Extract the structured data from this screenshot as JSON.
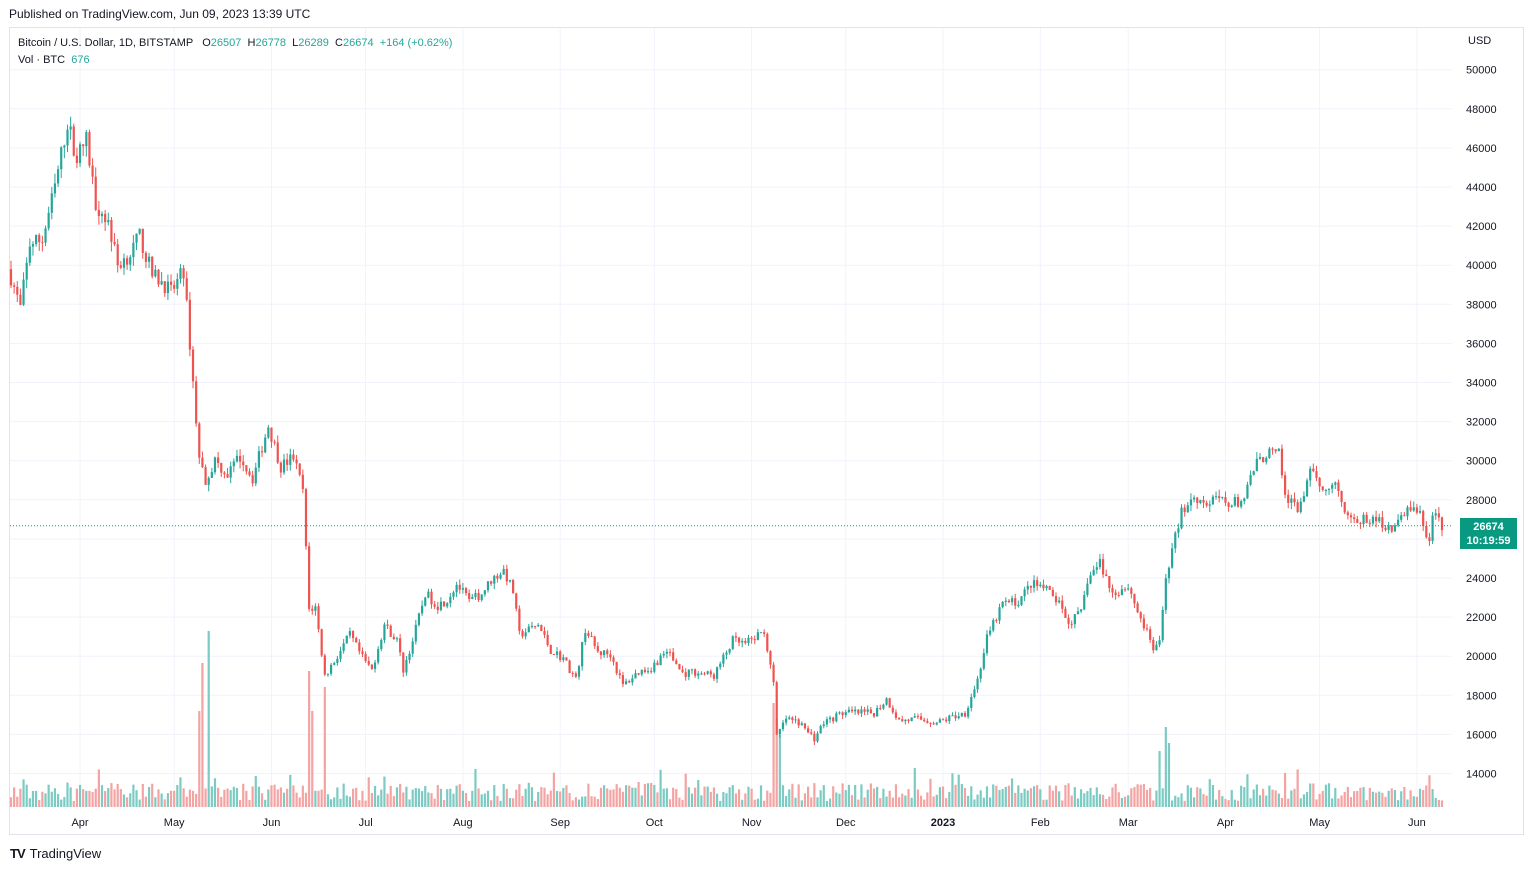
{
  "header": {
    "published": "Published on TradingView.com, Jun 09, 2023 13:39 UTC"
  },
  "legend": {
    "symbol": "Bitcoin / U.S. Dollar, 1D, BITSTAMP",
    "open_key": "O",
    "open": "26507",
    "high_key": "H",
    "high": "26778",
    "low_key": "L",
    "low": "26289",
    "close_key": "C",
    "close": "26674",
    "change": "+164 (+0.62%)",
    "volume_label": "Vol · BTC",
    "volume": "676"
  },
  "axis": {
    "currency": "USD"
  },
  "last_price": {
    "price": "26674",
    "countdown": "10:19:59"
  },
  "footer": {
    "logo_mark": "TV",
    "brand": "TradingView"
  },
  "colors": {
    "up": "#26a69a",
    "down": "#ef5350",
    "vol_up": "#7ccbc3",
    "vol_down": "#f4a3a3",
    "grid": "#f0f3fa",
    "last_line": "#089981"
  },
  "chart_data": {
    "type": "candlestick",
    "ylim": [
      12500,
      50800
    ],
    "y_ticks": [
      14000,
      16000,
      18000,
      20000,
      22000,
      24000,
      26000,
      28000,
      30000,
      32000,
      34000,
      36000,
      38000,
      40000,
      42000,
      44000,
      46000,
      48000,
      50000
    ],
    "x_ticks": [
      {
        "label": "Apr",
        "date": "2022-04-01"
      },
      {
        "label": "May",
        "date": "2022-05-01"
      },
      {
        "label": "Jun",
        "date": "2022-06-01"
      },
      {
        "label": "Jul",
        "date": "2022-07-01"
      },
      {
        "label": "Aug",
        "date": "2022-08-01"
      },
      {
        "label": "Sep",
        "date": "2022-09-01"
      },
      {
        "label": "Oct",
        "date": "2022-10-01"
      },
      {
        "label": "Nov",
        "date": "2022-11-01"
      },
      {
        "label": "Dec",
        "date": "2022-12-01"
      },
      {
        "label": "2023",
        "date": "2023-01-01",
        "bold": true
      },
      {
        "label": "Feb",
        "date": "2023-02-01"
      },
      {
        "label": "Mar",
        "date": "2023-03-01"
      },
      {
        "label": "Apr",
        "date": "2023-04-01"
      },
      {
        "label": "May",
        "date": "2023-05-01"
      },
      {
        "label": "Jun",
        "date": "2023-06-01"
      }
    ],
    "x_range": [
      "2022-03-10",
      "2023-06-09"
    ],
    "last_price": 26674,
    "close_points": [
      [
        "2022-03-10",
        39400
      ],
      [
        "2022-03-13",
        37800
      ],
      [
        "2022-03-16",
        41100
      ],
      [
        "2022-03-20",
        41300
      ],
      [
        "2022-03-24",
        44000
      ],
      [
        "2022-03-28",
        47300
      ],
      [
        "2022-03-31",
        45500
      ],
      [
        "2022-04-03",
        46400
      ],
      [
        "2022-04-06",
        43200
      ],
      [
        "2022-04-10",
        42200
      ],
      [
        "2022-04-13",
        40000
      ],
      [
        "2022-04-17",
        40600
      ],
      [
        "2022-04-20",
        41500
      ],
      [
        "2022-04-24",
        39500
      ],
      [
        "2022-04-27",
        39200
      ],
      [
        "2022-04-30",
        38600
      ],
      [
        "2022-05-04",
        39700
      ],
      [
        "2022-05-06",
        36000
      ],
      [
        "2022-05-09",
        30100
      ],
      [
        "2022-05-11",
        29000
      ],
      [
        "2022-05-14",
        30000
      ],
      [
        "2022-05-18",
        29300
      ],
      [
        "2022-05-22",
        30200
      ],
      [
        "2022-05-26",
        29100
      ],
      [
        "2022-05-31",
        31800
      ],
      [
        "2022-06-04",
        29700
      ],
      [
        "2022-06-08",
        30200
      ],
      [
        "2022-06-11",
        28500
      ],
      [
        "2022-06-13",
        22400
      ],
      [
        "2022-06-15",
        22500
      ],
      [
        "2022-06-18",
        19000
      ],
      [
        "2022-06-22",
        20000
      ],
      [
        "2022-06-26",
        21100
      ],
      [
        "2022-06-30",
        19900
      ],
      [
        "2022-07-03",
        19300
      ],
      [
        "2022-07-07",
        21600
      ],
      [
        "2022-07-11",
        20800
      ],
      [
        "2022-07-13",
        19300
      ],
      [
        "2022-07-16",
        20800
      ],
      [
        "2022-07-20",
        23200
      ],
      [
        "2022-07-24",
        22600
      ],
      [
        "2022-07-27",
        22900
      ],
      [
        "2022-07-30",
        23700
      ],
      [
        "2022-08-03",
        22800
      ],
      [
        "2022-08-07",
        23200
      ],
      [
        "2022-08-10",
        23900
      ],
      [
        "2022-08-14",
        24400
      ],
      [
        "2022-08-17",
        23300
      ],
      [
        "2022-08-19",
        21100
      ],
      [
        "2022-08-25",
        21600
      ],
      [
        "2022-08-29",
        20300
      ],
      [
        "2022-09-02",
        19900
      ],
      [
        "2022-09-06",
        18800
      ],
      [
        "2022-09-09",
        21400
      ],
      [
        "2022-09-13",
        20200
      ],
      [
        "2022-09-17",
        20100
      ],
      [
        "2022-09-21",
        18500
      ],
      [
        "2022-09-26",
        19200
      ],
      [
        "2022-09-30",
        19400
      ],
      [
        "2022-10-05",
        20300
      ],
      [
        "2022-10-10",
        19100
      ],
      [
        "2022-10-14",
        19200
      ],
      [
        "2022-10-20",
        19000
      ],
      [
        "2022-10-26",
        20800
      ],
      [
        "2022-10-30",
        20600
      ],
      [
        "2022-11-05",
        21300
      ],
      [
        "2022-11-08",
        18500
      ],
      [
        "2022-11-09",
        15900
      ],
      [
        "2022-11-12",
        16800
      ],
      [
        "2022-11-16",
        16600
      ],
      [
        "2022-11-21",
        15800
      ],
      [
        "2022-11-24",
        16600
      ],
      [
        "2022-11-30",
        17100
      ],
      [
        "2022-12-05",
        17100
      ],
      [
        "2022-12-10",
        17100
      ],
      [
        "2022-12-14",
        17800
      ],
      [
        "2022-12-18",
        16700
      ],
      [
        "2022-12-24",
        16800
      ],
      [
        "2022-12-30",
        16600
      ],
      [
        "2023-01-04",
        16900
      ],
      [
        "2023-01-08",
        17100
      ],
      [
        "2023-01-12",
        18800
      ],
      [
        "2023-01-15",
        20900
      ],
      [
        "2023-01-20",
        22700
      ],
      [
        "2023-01-25",
        22800
      ],
      [
        "2023-01-29",
        23700
      ],
      [
        "2023-02-02",
        23500
      ],
      [
        "2023-02-06",
        22900
      ],
      [
        "2023-02-10",
        21700
      ],
      [
        "2023-02-14",
        22200
      ],
      [
        "2023-02-16",
        23900
      ],
      [
        "2023-02-20",
        24800
      ],
      [
        "2023-02-24",
        23200
      ],
      [
        "2023-03-01",
        23600
      ],
      [
        "2023-03-04",
        22300
      ],
      [
        "2023-03-09",
        20400
      ],
      [
        "2023-03-11",
        20600
      ],
      [
        "2023-03-13",
        24100
      ],
      [
        "2023-03-18",
        27400
      ],
      [
        "2023-03-22",
        28200
      ],
      [
        "2023-03-26",
        27800
      ],
      [
        "2023-03-30",
        28000
      ],
      [
        "2023-04-03",
        27800
      ],
      [
        "2023-04-07",
        28000
      ],
      [
        "2023-04-10",
        29600
      ],
      [
        "2023-04-14",
        30400
      ],
      [
        "2023-04-18",
        30300
      ],
      [
        "2023-04-20",
        28200
      ],
      [
        "2023-04-24",
        27500
      ],
      [
        "2023-04-28",
        29300
      ],
      [
        "2023-05-02",
        28700
      ],
      [
        "2023-05-06",
        28800
      ],
      [
        "2023-05-09",
        27600
      ],
      [
        "2023-05-12",
        26800
      ],
      [
        "2023-05-16",
        27000
      ],
      [
        "2023-05-20",
        26900
      ],
      [
        "2023-05-25",
        26500
      ],
      [
        "2023-05-29",
        27700
      ],
      [
        "2023-06-02",
        27200
      ],
      [
        "2023-06-05",
        25800
      ],
      [
        "2023-06-06",
        27200
      ],
      [
        "2023-06-09",
        26674
      ]
    ],
    "volume_spikes": [
      [
        "2022-05-09",
        12
      ],
      [
        "2022-05-10",
        18
      ],
      [
        "2022-05-12",
        22
      ],
      [
        "2022-06-13",
        17
      ],
      [
        "2022-06-14",
        12
      ],
      [
        "2022-06-18",
        15
      ],
      [
        "2022-11-08",
        13
      ],
      [
        "2022-11-09",
        11
      ],
      [
        "2022-11-10",
        9
      ],
      [
        "2023-03-13",
        10
      ],
      [
        "2023-03-14",
        8
      ],
      [
        "2023-03-11",
        7
      ]
    ]
  }
}
